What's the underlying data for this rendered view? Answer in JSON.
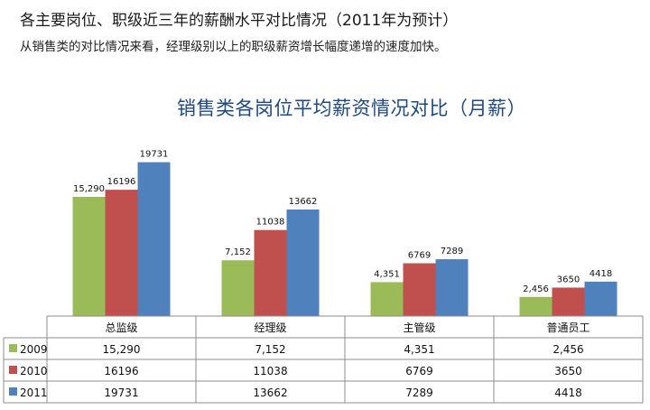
{
  "header": {
    "title": "各主要岗位、职级近三年的薪酬水平对比情况（2011年为预计）",
    "subtitle": "从销售类的对比情况来看，经理级别以上的职级薪资增长幅度递增的速度加快。"
  },
  "chart_data": {
    "type": "bar",
    "title": "销售类各岗位平均薪资情况对比（月薪）",
    "categories": [
      "总监级",
      "经理级",
      "主管级",
      "普通员工"
    ],
    "series": [
      {
        "name": "2009",
        "color": "#9bbb59",
        "values": [
          15290,
          7152,
          4351,
          2456
        ],
        "labels": [
          "15,290",
          "7,152",
          "4,351",
          "2,456"
        ]
      },
      {
        "name": "2010",
        "color": "#c0504d",
        "values": [
          16196,
          11038,
          6769,
          3650
        ],
        "labels": [
          "16196",
          "11038",
          "6769",
          "3650"
        ]
      },
      {
        "name": "2011",
        "color": "#4f81bd",
        "values": [
          19731,
          13662,
          7289,
          4418
        ],
        "labels": [
          "19731",
          "13662",
          "7289",
          "4418"
        ]
      }
    ],
    "ylim": [
      0,
      22000
    ],
    "grid": false,
    "legend": "data-table"
  }
}
